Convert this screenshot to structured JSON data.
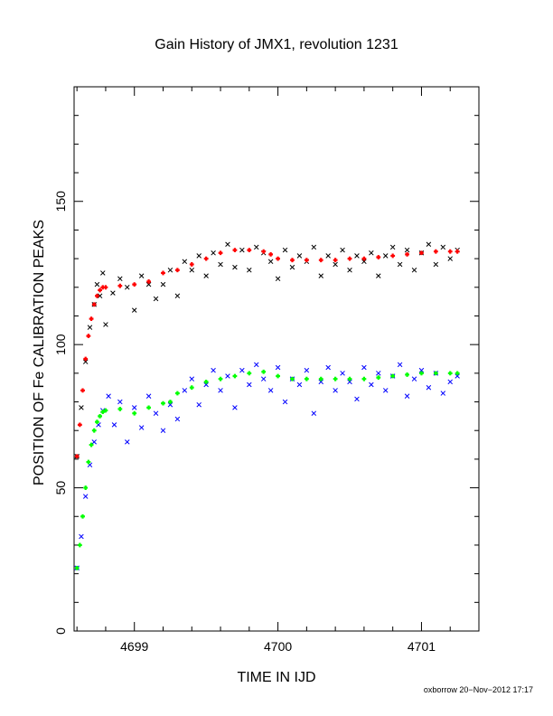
{
  "chart_data": {
    "type": "scatter",
    "title": "Gain History of JMX1, revolution 1231",
    "xlabel": "TIME IN IJD",
    "ylabel": "POSITION OF Fe CALIBRATION PEAKS",
    "xlim": [
      4698.58,
      4701.4
    ],
    "ylim": [
      0,
      190
    ],
    "x_ticks": [
      4699,
      4700,
      4701
    ],
    "y_ticks": [
      0,
      50,
      100,
      150
    ],
    "grid": false,
    "series": [
      {
        "color": "#000000",
        "marker": "x",
        "x": [
          4698.6,
          4698.63,
          4698.66,
          4698.69,
          4698.72,
          4698.74,
          4698.76,
          4698.78,
          4698.8,
          4698.85,
          4698.9,
          4698.95,
          4699.0,
          4699.05,
          4699.1,
          4699.15,
          4699.2,
          4699.25,
          4699.3,
          4699.35,
          4699.4,
          4699.45,
          4699.5,
          4699.55,
          4699.6,
          4699.65,
          4699.7,
          4699.75,
          4699.8,
          4699.85,
          4699.9,
          4699.95,
          4700.0,
          4700.05,
          4700.1,
          4700.15,
          4700.2,
          4700.25,
          4700.3,
          4700.35,
          4700.4,
          4700.45,
          4700.5,
          4700.55,
          4700.6,
          4700.65,
          4700.7,
          4700.75,
          4700.8,
          4700.85,
          4700.9,
          4700.95,
          4701.0,
          4701.05,
          4701.1,
          4701.15,
          4701.2,
          4701.25
        ],
        "values": [
          61,
          78,
          94,
          106,
          114,
          121,
          117,
          125,
          107,
          118,
          123,
          120,
          112,
          124,
          121,
          116,
          121,
          126,
          117,
          129,
          126,
          131,
          124,
          132,
          128,
          135,
          127,
          133,
          126,
          134,
          132,
          129,
          123,
          133,
          127,
          131,
          129,
          134,
          124,
          131,
          128,
          133,
          126,
          131,
          129,
          132,
          124,
          131,
          134,
          128,
          133,
          126,
          132,
          135,
          128,
          134,
          130,
          133
        ]
      },
      {
        "color": "#ff0000",
        "marker": "+",
        "x": [
          4698.6,
          4698.62,
          4698.64,
          4698.66,
          4698.68,
          4698.7,
          4698.72,
          4698.74,
          4698.76,
          4698.78,
          4698.8,
          4698.9,
          4699.0,
          4699.1,
          4699.2,
          4699.3,
          4699.4,
          4699.5,
          4699.6,
          4699.7,
          4699.8,
          4699.9,
          4699.95,
          4700.0,
          4700.1,
          4700.2,
          4700.3,
          4700.4,
          4700.5,
          4700.6,
          4700.7,
          4700.8,
          4700.9,
          4701.0,
          4701.1,
          4701.2,
          4701.25
        ],
        "values": [
          61,
          72,
          84,
          95,
          103,
          109,
          114,
          117,
          119,
          120,
          120,
          120.5,
          121,
          122,
          125,
          126,
          128,
          130,
          132,
          133,
          133,
          132.5,
          131.5,
          130,
          129.5,
          129.5,
          129.5,
          129.5,
          130,
          130,
          130.5,
          131,
          131.5,
          132,
          132.5,
          132.5,
          132.5
        ]
      },
      {
        "color": "#0000ff",
        "marker": "x",
        "x": [
          4698.6,
          4698.63,
          4698.66,
          4698.69,
          4698.72,
          4698.75,
          4698.78,
          4698.82,
          4698.86,
          4698.9,
          4698.95,
          4699.0,
          4699.05,
          4699.1,
          4699.15,
          4699.2,
          4699.25,
          4699.3,
          4699.35,
          4699.4,
          4699.45,
          4699.5,
          4699.55,
          4699.6,
          4699.65,
          4699.7,
          4699.75,
          4699.8,
          4699.85,
          4699.9,
          4699.95,
          4700.0,
          4700.05,
          4700.1,
          4700.15,
          4700.2,
          4700.25,
          4700.3,
          4700.35,
          4700.4,
          4700.45,
          4700.5,
          4700.55,
          4700.6,
          4700.65,
          4700.7,
          4700.75,
          4700.8,
          4700.85,
          4700.9,
          4700.95,
          4701.0,
          4701.05,
          4701.1,
          4701.15,
          4701.2,
          4701.25
        ],
        "values": [
          22,
          33,
          47,
          58,
          66,
          72,
          77,
          82,
          72,
          80,
          66,
          78,
          71,
          82,
          76,
          70,
          79,
          74,
          84,
          88,
          79,
          86,
          91,
          84,
          89,
          78,
          91,
          86,
          93,
          88,
          84,
          92,
          80,
          88,
          86,
          91,
          76,
          87,
          92,
          84,
          90,
          87,
          81,
          92,
          86,
          90,
          84,
          89,
          93,
          82,
          88,
          91,
          85,
          90,
          83,
          87,
          89
        ]
      },
      {
        "color": "#00ff00",
        "marker": "+",
        "x": [
          4698.6,
          4698.62,
          4698.64,
          4698.66,
          4698.68,
          4698.7,
          4698.72,
          4698.74,
          4698.76,
          4698.78,
          4698.8,
          4698.9,
          4699.0,
          4699.1,
          4699.2,
          4699.25,
          4699.3,
          4699.4,
          4699.5,
          4699.6,
          4699.7,
          4699.8,
          4699.9,
          4700.0,
          4700.1,
          4700.2,
          4700.3,
          4700.4,
          4700.5,
          4700.6,
          4700.7,
          4700.8,
          4700.9,
          4701.0,
          4701.1,
          4701.2,
          4701.25
        ],
        "values": [
          22,
          30,
          40,
          50,
          59,
          65,
          70,
          73,
          75,
          76.5,
          77,
          77.5,
          76,
          78,
          79.5,
          80,
          83,
          85,
          87,
          88,
          89,
          90,
          90.5,
          89,
          88,
          88,
          88,
          88,
          88,
          88,
          88.5,
          89,
          89.5,
          90,
          90,
          90,
          90
        ]
      }
    ]
  },
  "footer": {
    "text": "oxborrow 20−Nov−2012 17:17"
  }
}
